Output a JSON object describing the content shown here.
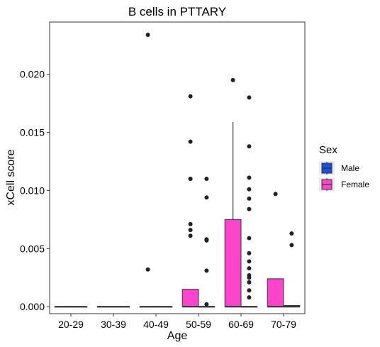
{
  "chart_data": {
    "type": "boxplot",
    "title": "B cells in PTTARY",
    "xlabel": "Age",
    "ylabel": "xCell score",
    "categories": [
      "20-29",
      "30-39",
      "40-49",
      "50-59",
      "60-69",
      "70-79"
    ],
    "yticks": [
      "0.000",
      "0.005",
      "0.010",
      "0.015",
      "0.020"
    ],
    "ytick_values": [
      0,
      0.005,
      0.01,
      0.015,
      0.02
    ],
    "ylim": [
      -0.0006,
      0.0245
    ],
    "legend": {
      "title": "Sex",
      "position": "right",
      "entries": [
        {
          "key": "Male",
          "label": "Male",
          "color": "#1a4fe0"
        },
        {
          "key": "Female",
          "label": "Female",
          "color": "#ff44cc"
        }
      ]
    },
    "series": [
      {
        "key": "Female",
        "color": "#ff44cc",
        "boxes": [
          {
            "q1": 0,
            "median": 0,
            "q3": 0,
            "whisker_low": 0,
            "whisker_high": 0,
            "outliers": []
          },
          {
            "q1": 0,
            "median": 0,
            "q3": 0,
            "whisker_low": 0,
            "whisker_high": 0,
            "outliers": []
          },
          {
            "q1": 0,
            "median": 0,
            "q3": 0,
            "whisker_low": 0,
            "whisker_high": 0,
            "outliers": [
              0.0032,
              0.0234
            ]
          },
          {
            "q1": 0,
            "median": 0,
            "q3": 0.0015,
            "whisker_low": 0,
            "whisker_high": 0.0015,
            "outliers": [
              0.0061,
              0.0066,
              0.0071,
              0.011,
              0.011,
              0.0142,
              0.0181
            ]
          },
          {
            "q1": 0,
            "median": 0,
            "q3": 0.0075,
            "whisker_low": 0,
            "whisker_high": 0.0159,
            "outliers": [
              0.0195
            ]
          },
          {
            "q1": 0,
            "median": 0,
            "q3": 0.0024,
            "whisker_low": 0,
            "whisker_high": 0.0024,
            "outliers": [
              0.0097
            ]
          }
        ]
      },
      {
        "key": "Male",
        "color": "#1a4fe0",
        "boxes": [
          {
            "q1": 0,
            "median": 0,
            "q3": 0,
            "whisker_low": 0,
            "whisker_high": 0,
            "outliers": []
          },
          {
            "q1": 0,
            "median": 0,
            "q3": 0,
            "whisker_low": 0,
            "whisker_high": 0,
            "outliers": []
          },
          {
            "q1": 0,
            "median": 0,
            "q3": 0,
            "whisker_low": 0,
            "whisker_high": 0,
            "outliers": []
          },
          {
            "q1": 0,
            "median": 0,
            "q3": 0,
            "whisker_low": 0,
            "whisker_high": 0,
            "outliers": [
              0.0002,
              0.0031,
              0.0057,
              0.0058,
              0.0094,
              0.011
            ]
          },
          {
            "q1": 0,
            "median": 0,
            "q3": 0,
            "whisker_low": 0,
            "whisker_high": 0,
            "outliers": [
              0.0008,
              0.0014,
              0.0021,
              0.0025,
              0.0027,
              0.0033,
              0.0039,
              0.0046,
              0.0059,
              0.0084,
              0.0093,
              0.0101,
              0.0111,
              0.0138,
              0.018
            ]
          },
          {
            "q1": 0,
            "median": 0,
            "q3": 0.0001,
            "whisker_low": 0,
            "whisker_high": 0.0001,
            "outliers": [
              0.0053,
              0.0063
            ]
          }
        ]
      }
    ]
  }
}
